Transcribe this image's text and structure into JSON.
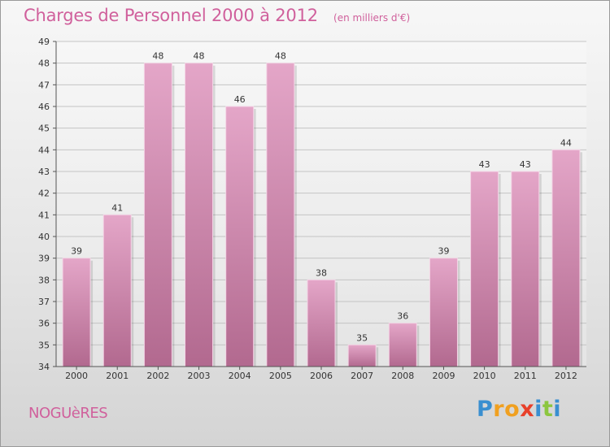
{
  "title": "Charges de Personnel 2000 à 2012",
  "subtitle": "(en milliers d'€)",
  "commune": "NOGUèRES",
  "logo": {
    "letters": [
      "P",
      "r",
      "o",
      "x",
      "i",
      "t",
      "i"
    ],
    "colors": [
      "#3a8fd0",
      "#f0a020",
      "#f0a020",
      "#e8402a",
      "#3a8fd0",
      "#8cc63f",
      "#3a8fd0"
    ]
  },
  "colors": {
    "bar": "#d97fb0",
    "accent": "#d0609c"
  },
  "chart_data": {
    "type": "bar",
    "categories": [
      "2000",
      "2001",
      "2002",
      "2003",
      "2004",
      "2005",
      "2006",
      "2007",
      "2008",
      "2009",
      "2010",
      "2011",
      "2012"
    ],
    "values": [
      39,
      41,
      48,
      48,
      46,
      48,
      38,
      35,
      36,
      39,
      43,
      43,
      44
    ],
    "ylim": [
      34,
      49
    ],
    "yticks": [
      34,
      35,
      36,
      37,
      38,
      39,
      40,
      41,
      42,
      43,
      44,
      45,
      46,
      47,
      48,
      49
    ],
    "grid": true
  }
}
